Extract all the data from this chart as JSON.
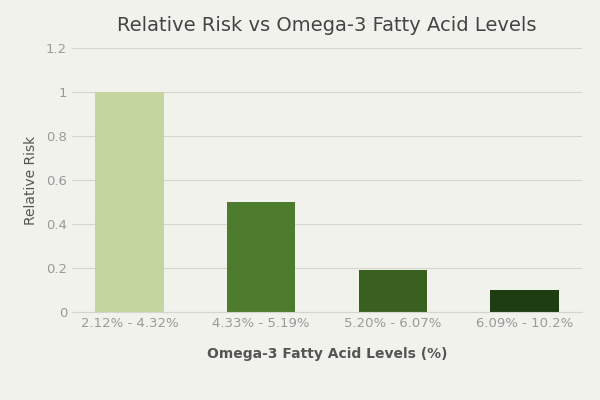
{
  "title": "Relative Risk vs Omega-3 Fatty Acid Levels",
  "xlabel": "Omega-3 Fatty Acid Levels (%)",
  "ylabel": "Relative Risk",
  "categories": [
    "2.12% - 4.32%",
    "4.33% - 5.19%",
    "5.20% - 6.07%",
    "6.09% - 10.2%"
  ],
  "values": [
    1.0,
    0.5,
    0.19,
    0.1
  ],
  "bar_colors": [
    "#c5d5a0",
    "#4d7c2e",
    "#3a6020",
    "#1e3d12"
  ],
  "ylim": [
    0,
    1.2
  ],
  "yticks": [
    0,
    0.2,
    0.4,
    0.6,
    0.8,
    1.0,
    1.2
  ],
  "background_color": "#f2f2ed",
  "grid_color": "#d5d5cc",
  "title_fontsize": 14,
  "label_fontsize": 10,
  "tick_fontsize": 9.5,
  "bar_width": 0.52,
  "tick_color": "#999999",
  "label_color": "#555555",
  "title_color": "#444444"
}
